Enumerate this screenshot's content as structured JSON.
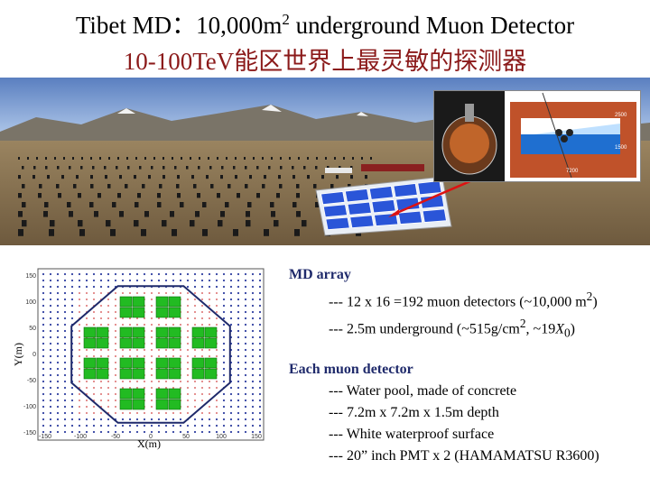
{
  "title": {
    "line1_prefix": "Tibet MD：10,000m",
    "line1_sup": "2",
    "line1_suffix": " underground  Muon  Detector",
    "line2": "10-100TeV能区世界上最灵敏的探测器"
  },
  "schematic": {
    "dim_2500": "2500",
    "dim_1500": "1500",
    "dim_7200": "7200"
  },
  "layout_plot": {
    "xlabel": "X(m)",
    "ylabel": "Y(m)",
    "xticks": [
      "-150",
      "-100",
      "-50",
      "0",
      "50",
      "100",
      "150"
    ],
    "yticks": [
      "150",
      "100",
      "50",
      "0",
      "-50",
      "-100",
      "-150"
    ],
    "colors": {
      "pools": "#22bb22",
      "array": "#d04040",
      "boundary": "#1f2a6b",
      "detectors": "#3040a0"
    }
  },
  "description": {
    "md_header": "MD array",
    "md_line1_prefix": "--- 12 x 16 =192 muon detectors (~10,000 m",
    "md_line1_sup": "2",
    "md_line1_suffix": ")",
    "md_line2_prefix": "--- 2.5m underground (~515g/cm",
    "md_line2_sup": "2",
    "md_line2_mid": ", ~19",
    "md_line2_x": "X",
    "md_line2_sub": "0",
    "md_line2_suffix": ")",
    "each_header": "Each muon detector",
    "each_items": [
      "--- Water pool, made of concrete",
      "--- 7.2m x 7.2m x 1.5m depth",
      "--- White waterproof surface",
      "--- 20” inch PMT x 2 (HAMAMATSU R3600)"
    ]
  }
}
